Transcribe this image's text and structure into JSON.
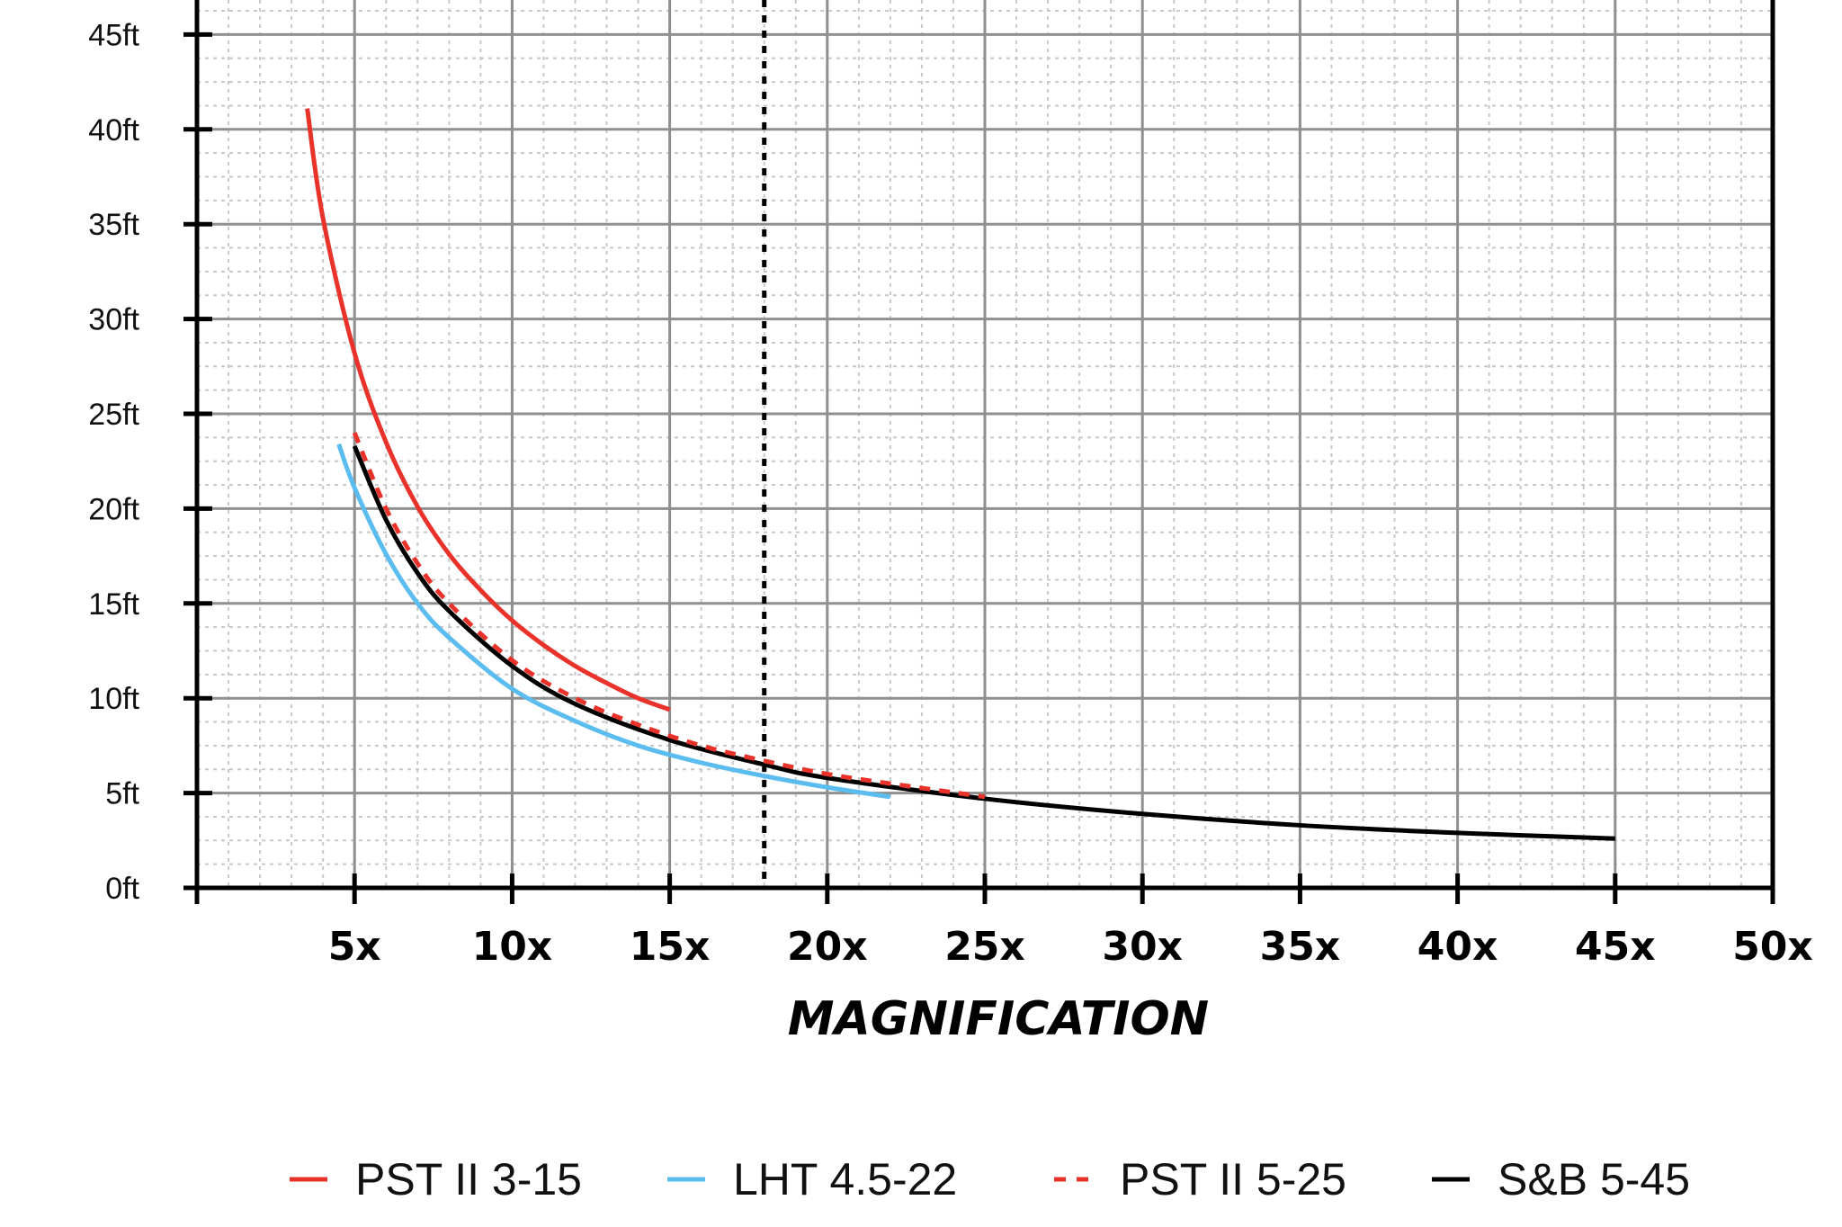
{
  "chart_data": {
    "type": "line",
    "title": "",
    "xlabel": "MAGNIFICATION",
    "ylabel": "",
    "xlim": [
      0,
      50
    ],
    "ylim": [
      0,
      45
    ],
    "x_ticks": [
      "5x",
      "10x",
      "15x",
      "20x",
      "25x",
      "30x",
      "35x",
      "40x",
      "45x",
      "50x"
    ],
    "x_tick_values": [
      5,
      10,
      15,
      20,
      25,
      30,
      35,
      40,
      45,
      50
    ],
    "y_ticks": [
      "0ft",
      "5ft",
      "10ft",
      "15ft",
      "20ft",
      "25ft",
      "30ft",
      "35ft",
      "40ft",
      "45ft"
    ],
    "y_tick_values": [
      0,
      5,
      10,
      15,
      20,
      25,
      30,
      35,
      40,
      45
    ],
    "grid": true,
    "minor_grid": true,
    "legend_position": "bottom",
    "reference_line": {
      "x": 18,
      "style": "dotted",
      "color": "#000000"
    },
    "series": [
      {
        "name": "PST II 3-15",
        "color": "#e8322a",
        "style": "solid",
        "x": [
          3.5,
          4,
          5,
          6,
          7,
          8,
          9,
          10,
          11,
          12,
          13,
          14,
          15
        ],
        "y": [
          41.1,
          35.3,
          28.2,
          23.5,
          20.1,
          17.6,
          15.7,
          14.1,
          12.8,
          11.7,
          10.8,
          10.0,
          9.4
        ]
      },
      {
        "name": "LHT 4.5-22",
        "color": "#5bbcf0",
        "style": "solid",
        "x": [
          4.5,
          5,
          6,
          7,
          8,
          10,
          12,
          14,
          16,
          18,
          20,
          22
        ],
        "y": [
          23.4,
          21.1,
          17.6,
          15.0,
          13.2,
          10.5,
          8.8,
          7.5,
          6.6,
          5.9,
          5.3,
          4.8
        ]
      },
      {
        "name": "PST II 5-25",
        "color": "#e8322a",
        "style": "dashed",
        "x": [
          5,
          6,
          7,
          8,
          10,
          12,
          14,
          16,
          18,
          20,
          22,
          25
        ],
        "y": [
          24.0,
          20.0,
          17.1,
          15.0,
          12.0,
          10.0,
          8.6,
          7.5,
          6.7,
          6.0,
          5.5,
          4.8
        ]
      },
      {
        "name": "S&B 5-45",
        "color": "#000000",
        "style": "solid",
        "x": [
          5,
          6,
          7,
          8,
          10,
          12,
          15,
          18,
          20,
          25,
          30,
          35,
          40,
          45
        ],
        "y": [
          23.3,
          19.4,
          16.6,
          14.6,
          11.7,
          9.7,
          7.8,
          6.5,
          5.8,
          4.7,
          3.9,
          3.3,
          2.9,
          2.6
        ]
      }
    ]
  }
}
